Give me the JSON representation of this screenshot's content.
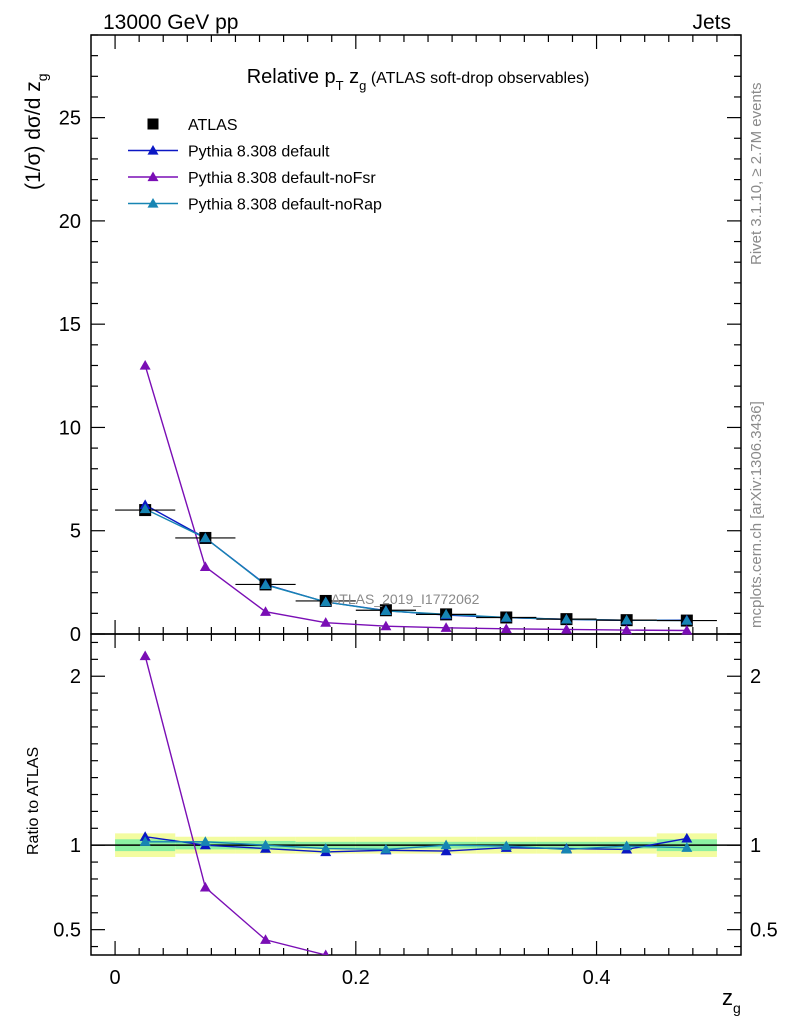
{
  "header": {
    "left": "13000 GeV pp",
    "right": "Jets"
  },
  "side": {
    "rivet": "Rivet 3.1.10, ≥ 2.7M events",
    "mcplots": "mcplots.cern.ch [arXiv:1306.3436]"
  },
  "chart_data": {
    "type": "line",
    "title": {
      "pre": "Relative p",
      "sub1": "T",
      "mid": " z",
      "sub2": "g",
      "post": " (ATLAS soft-drop observables)"
    },
    "analysis_label": "ATLAS_2019_I1772062",
    "ylabel_main": {
      "pre": "(1/σ) dσ/d z",
      "sub": "g"
    },
    "ylabel_ratio": "Ratio to ATLAS",
    "xlabel": {
      "pre": "z",
      "sub": "g"
    },
    "xlim": [
      -0.02,
      0.52
    ],
    "ylim_main": [
      0,
      29
    ],
    "ylim_ratio": [
      0.35,
      2.25
    ],
    "xticks": [
      0,
      0.2,
      0.4
    ],
    "xtick_labels": [
      "0",
      "0.2",
      "0.4"
    ],
    "yticks_main": [
      0,
      5,
      10,
      15,
      20,
      25
    ],
    "yticks_main_labels": [
      "0",
      "5",
      "10",
      "15",
      "20",
      "25"
    ],
    "yticks_ratio": [
      0.5,
      1,
      2
    ],
    "yticks_ratio_labels": [
      "0.5",
      "1",
      "2"
    ],
    "x": [
      0.025,
      0.075,
      0.125,
      0.175,
      0.225,
      0.275,
      0.325,
      0.375,
      0.425,
      0.475
    ],
    "bin_edges": [
      0,
      0.05,
      0.1,
      0.15,
      0.2,
      0.25,
      0.3,
      0.35,
      0.4,
      0.45,
      0.5
    ],
    "data": {
      "name": "ATLAS",
      "values": [
        6.0,
        4.65,
        2.4,
        1.6,
        1.15,
        0.95,
        0.8,
        0.72,
        0.67,
        0.65
      ],
      "band_outer": [
        0.07,
        0.05,
        0.05,
        0.05,
        0.05,
        0.05,
        0.05,
        0.05,
        0.05,
        0.07
      ],
      "band_inner": [
        0.035,
        0.025,
        0.025,
        0.02,
        0.02,
        0.02,
        0.02,
        0.02,
        0.02,
        0.035
      ]
    },
    "series": [
      {
        "name": "Pythia 8.308 default",
        "color": "#0b17c4",
        "values": [
          6.25,
          4.65,
          2.4,
          1.55,
          1.13,
          0.92,
          0.79,
          0.71,
          0.66,
          0.67
        ],
        "ratio": [
          1.05,
          1.0,
          0.98,
          0.96,
          0.97,
          0.965,
          0.985,
          0.98,
          0.975,
          1.04
        ]
      },
      {
        "name": "Pythia 8.308 default-noFsr",
        "color": "#7a0eb5",
        "values": [
          13.0,
          3.25,
          1.08,
          0.55,
          0.38,
          0.3,
          0.25,
          0.22,
          0.19,
          0.17
        ],
        "ratio": [
          2.12,
          0.75,
          0.44,
          0.35
        ]
      },
      {
        "name": "Pythia 8.308 default-noRap",
        "color": "#1785b3",
        "values": [
          6.05,
          4.65,
          2.38,
          1.55,
          1.12,
          0.95,
          0.8,
          0.71,
          0.67,
          0.65
        ],
        "ratio": [
          1.02,
          1.02,
          1.0,
          0.98,
          0.975,
          1.0,
          0.995,
          0.975,
          0.995,
          0.985
        ]
      }
    ],
    "legend_position": "top-left",
    "colors": {
      "data": "#000000",
      "band_outer": "#f3fca0",
      "band_inner": "#8bf0a2"
    }
  }
}
